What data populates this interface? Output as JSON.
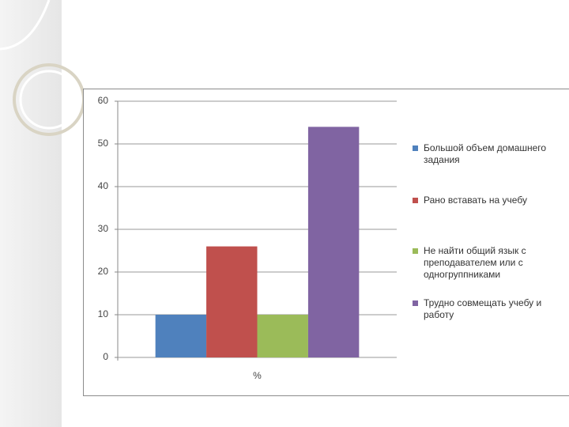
{
  "chart_data": {
    "type": "bar",
    "categories": [
      "%"
    ],
    "series": [
      {
        "name": "Большой объем домашнего задания",
        "color": "#4f81bd",
        "values": [
          10
        ]
      },
      {
        "name": "Рано вставать на учебу",
        "color": "#c0504d",
        "values": [
          26
        ]
      },
      {
        "name": "Не найти общий язык с преподавателем или с одногруппниками",
        "color": "#9bbb59",
        "values": [
          10
        ]
      },
      {
        "name": "Трудно совмещать учебу и работу",
        "color": "#8064a2",
        "values": [
          54
        ]
      }
    ],
    "ylim": [
      0,
      60
    ],
    "yticks": [
      0,
      10,
      20,
      30,
      40,
      50,
      60
    ],
    "grid": true,
    "legend": "right"
  }
}
